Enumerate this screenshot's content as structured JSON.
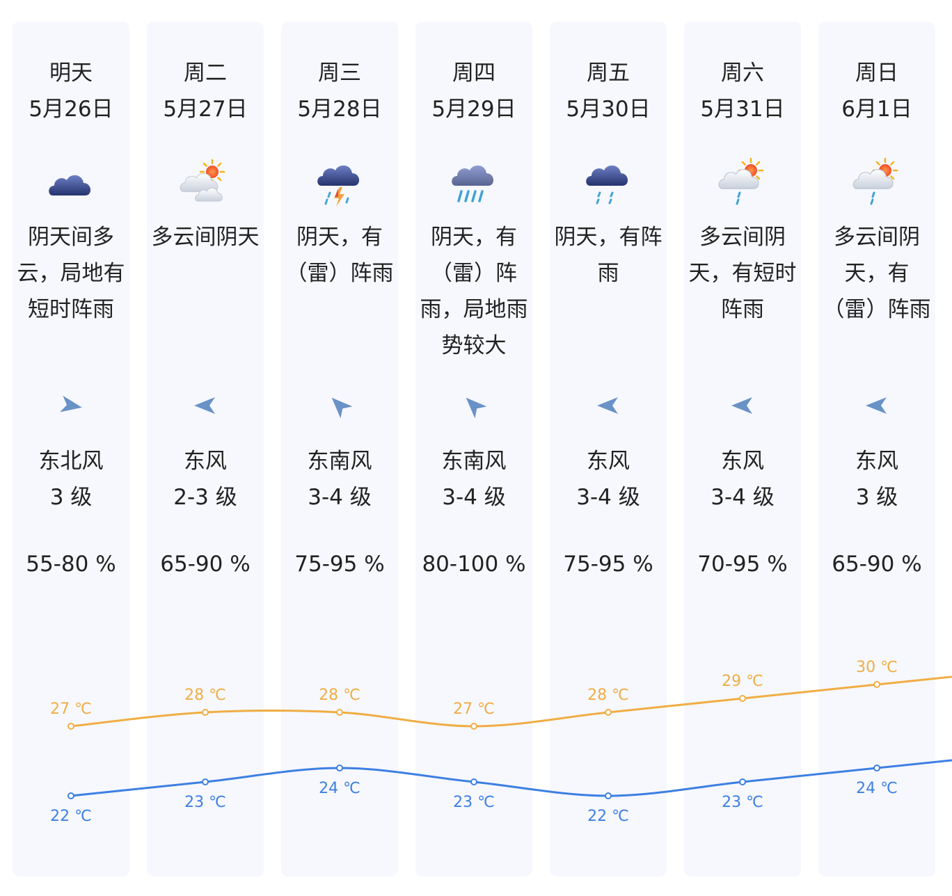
{
  "colors": {
    "card_bg": "#f6f8fd",
    "high_temp": "#f0ad44",
    "low_temp": "#3d7fe2",
    "wind_arrow": "#5a86c0"
  },
  "days": [
    {
      "weekday": "明天",
      "date": "5月26日",
      "icon": "overcast-cloud-icon",
      "desc": [
        "阴天间多",
        "云，局地有",
        "短时阵雨"
      ],
      "wind_dir": "东北风",
      "wind_level": "3 级",
      "wind_arrow": "arrow-icon",
      "humidity": "55-80 %",
      "high": "27 ℃",
      "low": "22 ℃"
    },
    {
      "weekday": "周二",
      "date": "5月27日",
      "icon": "partly-cloudy-icon",
      "desc": [
        "多云间阴天"
      ],
      "wind_dir": "东风",
      "wind_level": "2-3 级",
      "wind_arrow": "arrow-icon",
      "humidity": "65-90 %",
      "high": "28 ℃",
      "low": "23 ℃"
    },
    {
      "weekday": "周三",
      "date": "5月28日",
      "icon": "thunderstorm-icon",
      "desc": [
        "阴天，有",
        "（雷）阵雨"
      ],
      "wind_dir": "东南风",
      "wind_level": "3-4 级",
      "wind_arrow": "arrow-icon",
      "humidity": "75-95 %",
      "high": "28 ℃",
      "low": "24 ℃"
    },
    {
      "weekday": "周四",
      "date": "5月29日",
      "icon": "heavy-rain-icon",
      "desc": [
        "阴天，有",
        "（雷）阵",
        "雨，局地雨",
        "势较大"
      ],
      "wind_dir": "东南风",
      "wind_level": "3-4 级",
      "wind_arrow": "arrow-icon",
      "humidity": "80-100 %",
      "high": "27 ℃",
      "low": "23 ℃"
    },
    {
      "weekday": "周五",
      "date": "5月30日",
      "icon": "rain-icon",
      "desc": [
        "阴天，有阵",
        "雨"
      ],
      "wind_dir": "东风",
      "wind_level": "3-4 级",
      "wind_arrow": "arrow-icon",
      "humidity": "75-95 %",
      "high": "28 ℃",
      "low": "22 ℃"
    },
    {
      "weekday": "周六",
      "date": "5月31日",
      "icon": "sun-cloud-shower-icon",
      "desc": [
        "多云间阴",
        "天，有短时",
        "阵雨"
      ],
      "wind_dir": "东风",
      "wind_level": "3-4 级",
      "wind_arrow": "arrow-icon",
      "humidity": "70-95 %",
      "high": "29 ℃",
      "low": "23 ℃"
    },
    {
      "weekday": "周日",
      "date": "6月1日",
      "icon": "sun-cloud-shower-icon",
      "desc": [
        "多云间阴",
        "天，有",
        "（雷）阵雨"
      ],
      "wind_dir": "东风",
      "wind_level": "3 级",
      "wind_arrow": "arrow-icon",
      "humidity": "65-90 %",
      "high": "30 ℃",
      "low": "24 ℃"
    }
  ],
  "chart_data": {
    "type": "line",
    "categories": [
      "5月26日",
      "5月27日",
      "5月28日",
      "5月29日",
      "5月30日",
      "5月31日",
      "6月1日"
    ],
    "series": [
      {
        "values": [
          27,
          28,
          28,
          27,
          28,
          29,
          30
        ],
        "unit": "℃",
        "color": "#f0ad44"
      },
      {
        "values": [
          22,
          23,
          24,
          23,
          22,
          23,
          24
        ],
        "unit": "℃",
        "color": "#3d7fe2"
      }
    ]
  }
}
